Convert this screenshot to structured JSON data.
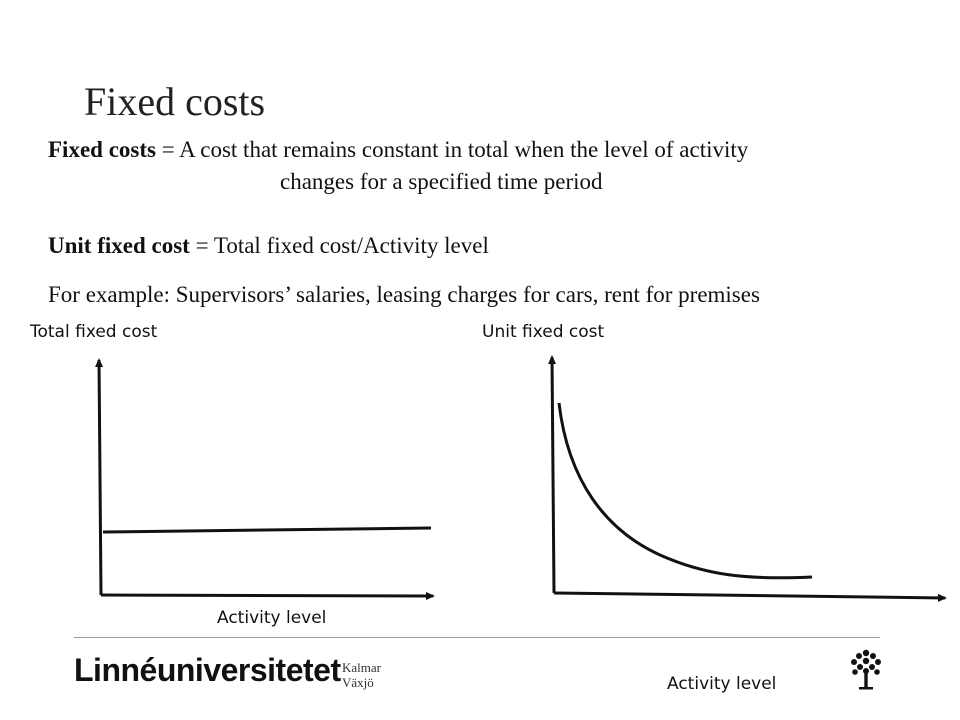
{
  "slide": {
    "title": "Fixed costs",
    "definition": {
      "term": "Fixed costs",
      "rest_line1": " = A cost that remains constant in total when the level of activity",
      "rest_line2": "changes for a specified time period"
    },
    "unit_formula": {
      "term": "Unit fixed cost",
      "rest": " = Total fixed cost/Activity level"
    },
    "example": "For example: Supervisors’ salaries, leasing charges for cars, rent for premises"
  },
  "graphs": {
    "left": {
      "y_label": "Total fixed cost",
      "x_label": "Activity level"
    },
    "right": {
      "y_label": "Unit fixed cost",
      "x_label": "Activity level"
    }
  },
  "footer": {
    "logo_text": "Linnéuniversitetet",
    "logo_sub1": "Kalmar",
    "logo_sub2": "Växjö",
    "logo_icon": "tree-icon"
  },
  "colors": {
    "ink": "#111111",
    "rule": "#9a9a9a"
  }
}
